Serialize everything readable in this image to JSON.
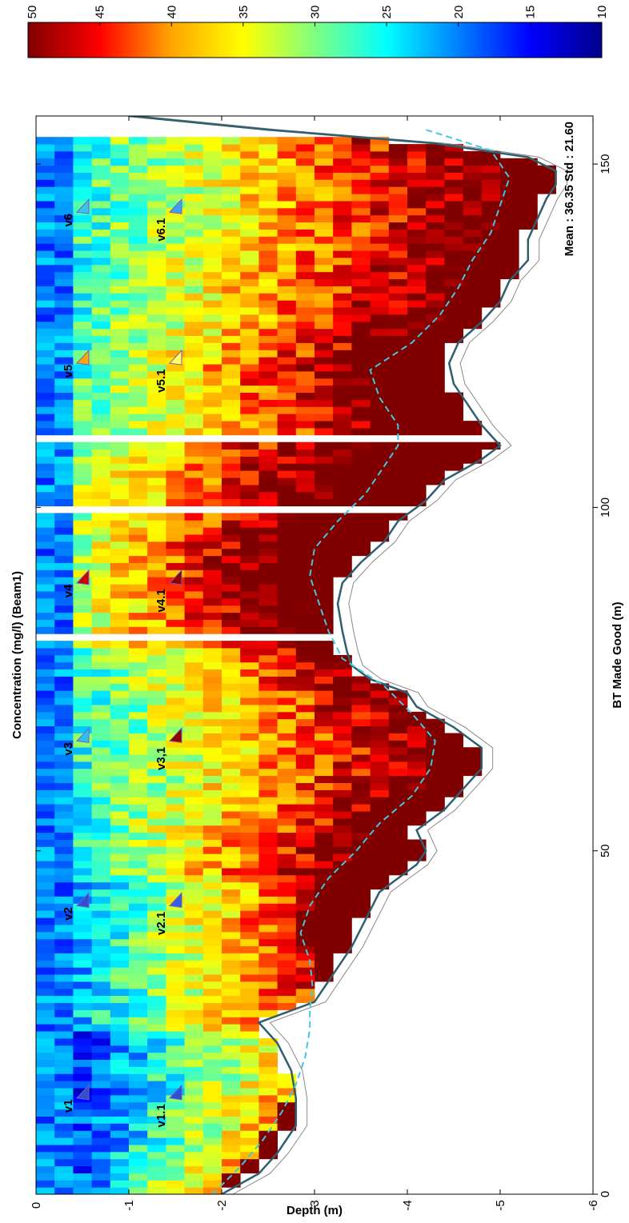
{
  "chart_data": {
    "type": "heatmap",
    "orientation": "rotated-90-clockwise",
    "title": "Concentration (mg/l) (Beam1)",
    "xlabel": "BT Made Good (m)",
    "ylabel": "Depth (m)",
    "xlim": [
      0,
      157
    ],
    "ylim": [
      -6,
      0
    ],
    "x_ticks": [
      "0",
      "50",
      "100",
      "150"
    ],
    "y_ticks": [
      "0",
      "-1",
      "-2",
      "-3",
      "-4",
      "-5",
      "-6"
    ],
    "annotation": "Mean : 36.35 Std : 21.60",
    "colorbar": {
      "range": [
        10,
        50
      ],
      "ticks": [
        "50",
        "45",
        "40",
        "35",
        "30",
        "25",
        "20",
        "15",
        "10"
      ],
      "colors": [
        "#800000",
        "#ff0000",
        "#ffa500",
        "#ffff00",
        "#80ff80",
        "#00ffff",
        "#0080ff",
        "#0000ff",
        "#00008b"
      ]
    },
    "verticals": [
      {
        "top_label": "v1",
        "mid_label": "v1.1",
        "x": 14,
        "top_color": "#3050d0",
        "mid_color": "#3050d0"
      },
      {
        "top_label": "v2",
        "mid_label": "v2.1",
        "x": 42,
        "top_color": "#3050d0",
        "mid_color": "#3060e0"
      },
      {
        "top_label": "v3",
        "mid_label": "v3,1",
        "x": 66,
        "top_color": "#30c0f0",
        "mid_color": "#900000"
      },
      {
        "top_label": "v4",
        "mid_label": "v4.1",
        "x": 89,
        "top_color": "#cc0000",
        "mid_color": "#900000"
      },
      {
        "top_label": "v5",
        "mid_label": "v5.1",
        "x": 121,
        "top_color": "#ffa500",
        "mid_color": "#ffff60"
      },
      {
        "top_label": "v6",
        "mid_label": "v6.1",
        "x": 143,
        "top_color": "#40c0f0",
        "mid_color": "#40a0f0"
      }
    ],
    "bottom_profile": {
      "x": [
        0,
        3,
        6,
        10,
        14,
        18,
        22,
        25,
        28,
        32,
        36,
        40,
        44,
        46,
        48,
        50,
        53,
        56,
        59,
        62,
        65,
        68,
        71,
        73,
        75,
        77,
        79,
        82,
        86,
        89,
        92,
        95,
        98,
        101,
        104,
        107,
        109,
        112,
        115,
        118,
        121,
        124,
        127,
        130,
        133,
        136,
        139,
        142,
        145,
        147,
        149,
        151,
        153,
        155,
        157
      ],
      "depth": [
        -2.0,
        -2.4,
        -2.6,
        -2.8,
        -2.8,
        -2.75,
        -2.6,
        -2.4,
        -3.0,
        -3.2,
        -3.4,
        -3.55,
        -3.7,
        -3.9,
        -4.1,
        -4.2,
        -4.1,
        -4.4,
        -4.6,
        -4.8,
        -4.8,
        -4.5,
        -4.1,
        -4.0,
        -3.6,
        -3.4,
        -3.35,
        -3.3,
        -3.25,
        -3.3,
        -3.5,
        -3.75,
        -3.9,
        -4.2,
        -4.4,
        -4.8,
        -5.0,
        -4.8,
        -4.65,
        -4.5,
        -4.45,
        -4.55,
        -4.8,
        -5.0,
        -5.1,
        -5.3,
        -5.3,
        -5.4,
        -5.5,
        -5.6,
        -5.6,
        -5.3,
        -4.3,
        -2.5,
        -1.0
      ]
    },
    "measured_limit": {
      "x": [
        0,
        4,
        8,
        12,
        16,
        20,
        24,
        27,
        30,
        34,
        38,
        42,
        46,
        50,
        54,
        58,
        62,
        66,
        70,
        74,
        78,
        82,
        86,
        90,
        94,
        98,
        102,
        106,
        109,
        112,
        116,
        120,
        124,
        128,
        132,
        136,
        140,
        144,
        148,
        152,
        155
      ],
      "depth": [
        -1.9,
        -2.2,
        -2.45,
        -2.65,
        -2.8,
        -2.9,
        -2.95,
        -2.95,
        -2.98,
        -2.95,
        -2.85,
        -2.95,
        -3.15,
        -3.45,
        -3.7,
        -4.05,
        -4.25,
        -4.3,
        -4.05,
        -3.75,
        -3.3,
        -3.15,
        -3.05,
        -2.95,
        -3.0,
        -3.25,
        -3.55,
        -3.75,
        -3.9,
        -3.9,
        -3.7,
        -3.6,
        -4.05,
        -4.35,
        -4.55,
        -4.7,
        -4.9,
        -5.0,
        -5.1,
        -4.9,
        -4.2
      ]
    }
  }
}
